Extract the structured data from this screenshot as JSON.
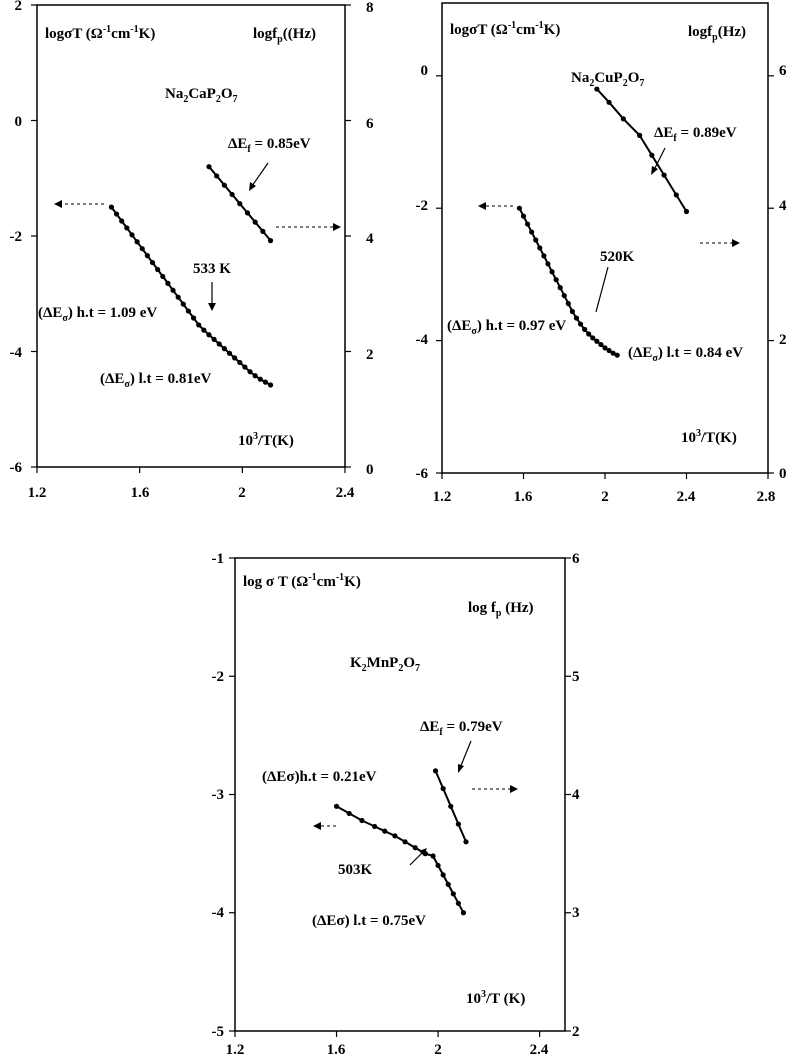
{
  "chart_data": [
    {
      "type": "scatter",
      "compound": {
        "p1": "Na",
        "s1": "2",
        "p2": "CaP",
        "s2": "2",
        "p3": "O",
        "s3": "7"
      },
      "left_axis_label": {
        "a": "logσT (Ω",
        "sup1": "-1",
        "b": "cm",
        "sup2": "-1",
        "c": "K)"
      },
      "right_axis_label": {
        "a": "logf",
        "sub": "p",
        "b": "((Hz)"
      },
      "x_axis_label": {
        "a": "10",
        "sup": "3",
        "b": "/T(K)"
      },
      "xlim": [
        1.2,
        2.4
      ],
      "ylim_left": [
        -6,
        2
      ],
      "ylim_right": [
        0,
        8
      ],
      "x_ticks": [
        "1.2",
        "1.6",
        "2",
        "2.4"
      ],
      "y_left_ticks": [
        "2",
        "0",
        "-2",
        "-4",
        "-6"
      ],
      "y_right_ticks": [
        "8",
        "6",
        "4",
        "2",
        "0"
      ],
      "series": [
        {
          "axis": "left",
          "x": [
            1.49,
            1.51,
            1.53,
            1.55,
            1.57,
            1.59,
            1.61,
            1.63,
            1.65,
            1.67,
            1.69,
            1.71,
            1.73,
            1.75,
            1.77,
            1.79,
            1.81,
            1.83,
            1.85,
            1.87,
            1.89,
            1.91,
            1.93,
            1.95,
            1.97,
            1.99,
            2.01,
            2.03,
            2.05,
            2.07,
            2.09,
            2.11
          ],
          "y": [
            -1.5,
            -1.62,
            -1.74,
            -1.86,
            -1.98,
            -2.1,
            -2.22,
            -2.34,
            -2.46,
            -2.58,
            -2.7,
            -2.82,
            -2.94,
            -3.06,
            -3.18,
            -3.3,
            -3.42,
            -3.54,
            -3.63,
            -3.71,
            -3.79,
            -3.87,
            -3.95,
            -4.03,
            -4.11,
            -4.19,
            -4.27,
            -4.35,
            -4.42,
            -4.48,
            -4.53,
            -4.58
          ]
        },
        {
          "axis": "right",
          "x": [
            1.87,
            1.9,
            1.93,
            1.96,
            1.99,
            2.02,
            2.05,
            2.08,
            2.11
          ],
          "y": [
            5.2,
            5.04,
            4.88,
            4.72,
            4.56,
            4.4,
            4.24,
            4.08,
            3.92
          ]
        }
      ],
      "annotations": {
        "ef": {
          "a": "ΔE",
          "sub": "f",
          "b": " = 0.85eV"
        },
        "trans": "533 K",
        "ht": {
          "a": "(ΔE",
          "sub": "σ",
          "b": ") h.t = 1.09 eV"
        },
        "lt": {
          "a": "(ΔE",
          "sub": "σ",
          "b": ") l.t = 0.81eV"
        }
      }
    },
    {
      "type": "scatter",
      "compound": {
        "p1": "Na",
        "s1": "2",
        "p2": "CuP",
        "s2": "2",
        "p3": "O",
        "s3": "7"
      },
      "left_axis_label": {
        "a": "logσT (Ω",
        "sup1": "-1",
        "b": "cm",
        "sup2": "-1",
        "c": "K)"
      },
      "right_axis_label": {
        "a": "logf",
        "sub": "p",
        "b": "(Hz)"
      },
      "x_axis_label": {
        "a": "10",
        "sup": "3",
        "b": "/T(K)"
      },
      "xlim": [
        1.2,
        2.8
      ],
      "ylim_left": [
        -6,
        1.1
      ],
      "ylim_right": [
        0,
        7.1
      ],
      "x_ticks": [
        "1.2",
        "1.6",
        "2",
        "2.4",
        "2.8"
      ],
      "y_left_ticks": [
        "0",
        "-2",
        "-4",
        "-6"
      ],
      "y_right_ticks": [
        "6",
        "4",
        "2",
        "0"
      ],
      "series": [
        {
          "axis": "left",
          "x": [
            1.58,
            1.6,
            1.62,
            1.64,
            1.66,
            1.68,
            1.7,
            1.72,
            1.74,
            1.76,
            1.78,
            1.8,
            1.82,
            1.84,
            1.86,
            1.88,
            1.9,
            1.92,
            1.94,
            1.96,
            1.98,
            2.0,
            2.02,
            2.04,
            2.06
          ],
          "y": [
            -2.0,
            -2.12,
            -2.24,
            -2.36,
            -2.48,
            -2.6,
            -2.72,
            -2.84,
            -2.96,
            -3.08,
            -3.2,
            -3.32,
            -3.44,
            -3.56,
            -3.66,
            -3.75,
            -3.83,
            -3.9,
            -3.96,
            -4.01,
            -4.06,
            -4.11,
            -4.15,
            -4.19,
            -4.22
          ]
        },
        {
          "axis": "right",
          "x": [
            1.96,
            2.02,
            2.09,
            2.17,
            2.23,
            2.29,
            2.35,
            2.4
          ],
          "y": [
            5.8,
            5.6,
            5.35,
            5.1,
            4.8,
            4.5,
            4.2,
            3.95
          ]
        }
      ],
      "annotations": {
        "ef": {
          "a": "ΔE",
          "sub": "f",
          "b": " = 0.89eV"
        },
        "trans": "520K",
        "ht": {
          "a": "(ΔE",
          "sub": "σ",
          "b": ") h.t = 0.97 eV"
        },
        "lt": {
          "a": "(ΔE",
          "sub": "σ",
          "b": ") l.t = 0.84 eV"
        }
      }
    },
    {
      "type": "scatter",
      "compound": {
        "p1": "K",
        "s1": "2",
        "p2": "MnP",
        "s2": "2",
        "p3": "O",
        "s3": "7"
      },
      "left_axis_label": {
        "a": "log σ T (Ω",
        "sup1": "-1",
        "b": "cm",
        "sup2": "-1",
        "c": "K)"
      },
      "right_axis_label": {
        "a": "log f",
        "sub": "p",
        "b": " (Hz)"
      },
      "x_axis_label": {
        "a": "10",
        "sup": "3",
        "b": "/T (K)"
      },
      "xlim": [
        1.2,
        2.5
      ],
      "ylim_left": [
        -5,
        -1
      ],
      "ylim_right": [
        2,
        6
      ],
      "x_ticks": [
        "1.2",
        "1.6",
        "2",
        "2.4"
      ],
      "y_left_ticks": [
        "-1",
        "-2",
        "-3",
        "-4",
        "-5"
      ],
      "y_right_ticks": [
        "6",
        "5",
        "4",
        "3",
        "2"
      ],
      "series": [
        {
          "axis": "left",
          "x": [
            1.6,
            1.65,
            1.7,
            1.75,
            1.79,
            1.83,
            1.87,
            1.91,
            1.95,
            1.98,
            2.0,
            2.02,
            2.04,
            2.06,
            2.08,
            2.1
          ],
          "y": [
            -3.1,
            -3.16,
            -3.22,
            -3.27,
            -3.31,
            -3.35,
            -3.4,
            -3.45,
            -3.5,
            -3.52,
            -3.6,
            -3.68,
            -3.76,
            -3.84,
            -3.92,
            -4.0
          ]
        },
        {
          "axis": "right",
          "x": [
            1.99,
            2.02,
            2.05,
            2.08,
            2.11
          ],
          "y": [
            4.2,
            4.05,
            3.9,
            3.75,
            3.6
          ]
        }
      ],
      "annotations": {
        "ef": {
          "a": "ΔE",
          "sub": "f",
          "b": " = 0.79eV"
        },
        "trans": "503K",
        "ht": "(ΔEσ)h.t = 0.21eV",
        "lt": "(ΔEσ) l.t = 0.75eV"
      }
    }
  ]
}
